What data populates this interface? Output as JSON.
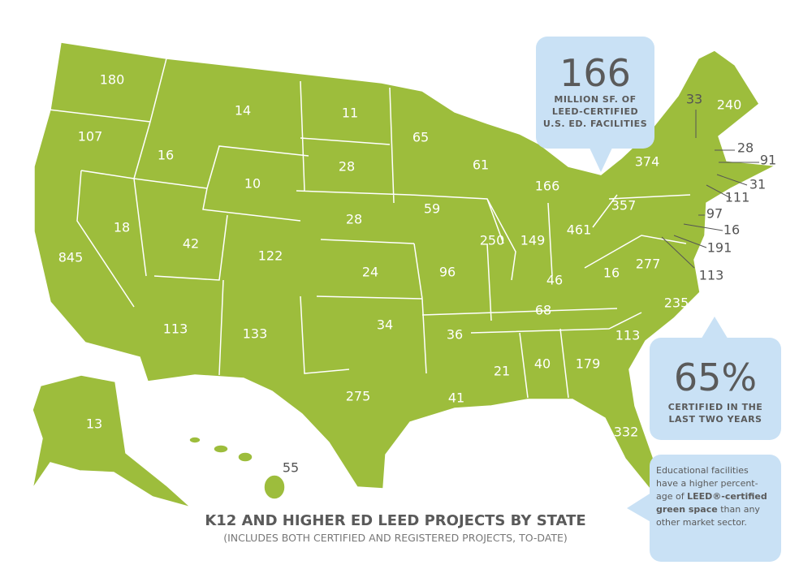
{
  "title": "K12 AND HIGHER ED LEED PROJECTS BY STATE",
  "subtitle": "(INCLUDES BOTH CERTIFIED AND REGISTERED PROJECTS, TO-DATE)",
  "state_counts": [
    180,
    107,
    16,
    14,
    11,
    65,
    61,
    166,
    33,
    240,
    28,
    91,
    374,
    31,
    111,
    10,
    28,
    59,
    28,
    357,
    97,
    16,
    191,
    18,
    42,
    122,
    250,
    149,
    461,
    16,
    277,
    845,
    24,
    96,
    46,
    113,
    68,
    235,
    113,
    133,
    34,
    36,
    113,
    21,
    40,
    179,
    275,
    41,
    332,
    13,
    55
  ],
  "callouts": [
    {
      "figure": "166",
      "lines": [
        "MILLION SF. OF",
        "LEED-CERTIFIED",
        "U.S. ED. FACILITIES"
      ]
    },
    {
      "figure": "65%",
      "lines": [
        "CERTIFIED IN THE",
        "LAST TWO YEARS"
      ]
    }
  ],
  "note": {
    "before": "Educational facilities have a higher percent-age of ",
    "bold": "LEED®-certified green space",
    "after": " than any other market sector."
  }
}
